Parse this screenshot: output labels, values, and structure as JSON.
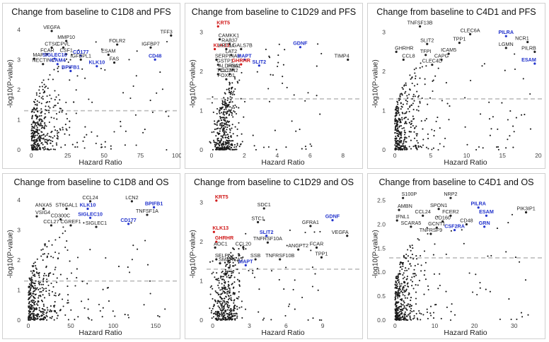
{
  "figure": {
    "colors": {
      "point": "#1a1a1a",
      "threshold": "#bdbdbd",
      "gene_default": "#222222",
      "gene_blue": "#2233cc",
      "gene_red": "#d01818"
    }
  },
  "chart_data": [
    {
      "type": "scatter",
      "title": "Change from baseline to C1D8 and PFS",
      "xlabel": "Hazard Ratio",
      "ylabel": "-log10(P-value)",
      "xlim": [
        -5,
        100
      ],
      "ylim": [
        0,
        4.3
      ],
      "xticks": [
        0,
        25,
        50,
        75,
        100
      ],
      "yticks": [
        0,
        1,
        2,
        3,
        4
      ],
      "threshold": 1.3,
      "cloud": {
        "seed": 11,
        "n": 420,
        "xmax": 100,
        "ymax": 4.3,
        "xscale": 14
      },
      "genes": [
        {
          "label": "VEGFA",
          "x": 14,
          "y": 3.95,
          "color": "default"
        },
        {
          "label": "MMP10",
          "x": 24,
          "y": 3.62,
          "color": "default"
        },
        {
          "label": "CTSC",
          "x": 14,
          "y": 3.4,
          "color": "default"
        },
        {
          "label": "CPVL",
          "x": 22,
          "y": 3.4,
          "color": "default"
        },
        {
          "label": "FCAR",
          "x": 11,
          "y": 3.18,
          "color": "default"
        },
        {
          "label": "CSF1",
          "x": 24,
          "y": 3.18,
          "color": "default"
        },
        {
          "label": "CD177",
          "x": 34,
          "y": 3.13,
          "color": "blue"
        },
        {
          "label": "ESAM",
          "x": 53,
          "y": 3.16,
          "color": "default"
        },
        {
          "label": "FOLR2",
          "x": 59,
          "y": 3.5,
          "color": "default"
        },
        {
          "label": "IGFBP7",
          "x": 82,
          "y": 3.4,
          "color": "default"
        },
        {
          "label": "TFF3",
          "x": 96,
          "y": 3.8,
          "color": "default"
        },
        {
          "label": "MAPT",
          "x": 2,
          "y": 3.03,
          "color": "default"
        },
        {
          "label": "SIGLEC10",
          "x": 16,
          "y": 3.03,
          "color": "blue"
        },
        {
          "label": "IGFBPL1",
          "x": 34,
          "y": 3.0,
          "color": "default"
        },
        {
          "label": "FAS",
          "x": 57,
          "y": 2.9,
          "color": "default"
        },
        {
          "label": "CD48",
          "x": 85,
          "y": 3.0,
          "color": "blue"
        },
        {
          "label": "NECTIN4",
          "x": 8,
          "y": 2.85,
          "color": "default"
        },
        {
          "label": "ICAM4",
          "x": 18,
          "y": 2.85,
          "color": "blue"
        },
        {
          "label": "KLK10",
          "x": 45,
          "y": 2.78,
          "color": "blue"
        },
        {
          "label": "BPIFB1",
          "x": 27,
          "y": 2.62,
          "color": "blue"
        }
      ]
    },
    {
      "type": "scatter",
      "title": "Change from baseline to C1D29 and PFS",
      "xlabel": "Hazard Ratio",
      "ylabel": "-log10(P-value)",
      "xlim": [
        -0.3,
        9
      ],
      "ylim": [
        0,
        3.3
      ],
      "xticks": [
        0,
        2,
        4,
        6,
        8
      ],
      "yticks": [
        0,
        1,
        2,
        3
      ],
      "threshold": 1.3,
      "cloud": {
        "seed": 23,
        "n": 420,
        "xmax": 9,
        "ymax": 3.3,
        "xscale": 0.55,
        "xcenter": 0.85
      },
      "genes": [
        {
          "label": "KRT5",
          "x": 0.4,
          "y": 3.15,
          "color": "red"
        },
        {
          "label": "CAMKK1",
          "x": 0.5,
          "y": 2.82,
          "color": "default"
        },
        {
          "label": "RAB37",
          "x": 1.1,
          "y": 2.7,
          "color": "default"
        },
        {
          "label": "KLK13",
          "x": 0.2,
          "y": 2.57,
          "color": "red"
        },
        {
          "label": "KRT14",
          "x": 0.9,
          "y": 2.57,
          "color": "default"
        },
        {
          "label": "LGALS7B",
          "x": 1.8,
          "y": 2.57,
          "color": "default"
        },
        {
          "label": "GDNF",
          "x": 5.4,
          "y": 2.62,
          "color": "blue"
        },
        {
          "label": "LAT2",
          "x": 1.2,
          "y": 2.42,
          "color": "default"
        },
        {
          "label": "SERPINA9",
          "x": 0.3,
          "y": 2.3,
          "color": "default"
        },
        {
          "label": "MAPT",
          "x": 2.0,
          "y": 2.3,
          "color": "blue"
        },
        {
          "label": "TIMP4",
          "x": 8.3,
          "y": 2.3,
          "color": "default"
        },
        {
          "label": "GSTP1",
          "x": 0.4,
          "y": 2.17,
          "color": "default"
        },
        {
          "label": "GHRHR",
          "x": 1.8,
          "y": 2.18,
          "color": "red"
        },
        {
          "label": "SLIT2",
          "x": 2.9,
          "y": 2.15,
          "color": "blue"
        },
        {
          "label": "ALDH3A1",
          "x": 0.5,
          "y": 2.05,
          "color": "default"
        },
        {
          "label": "IFNG",
          "x": 1.3,
          "y": 2.05,
          "color": "default"
        },
        {
          "label": "TCL1A",
          "x": 0.4,
          "y": 1.93,
          "color": "default"
        },
        {
          "label": "DCTN2",
          "x": 1.1,
          "y": 1.93,
          "color": "default"
        },
        {
          "label": "FOXO1",
          "x": 0.9,
          "y": 1.8,
          "color": "default"
        }
      ]
    },
    {
      "type": "scatter",
      "title": "Change from baseline to C4D1 and PFS",
      "xlabel": "Hazard Ratio",
      "ylabel": "-log10(P-value)",
      "xlim": [
        -0.8,
        20.5
      ],
      "ylim": [
        0,
        3.3
      ],
      "xticks": [
        0,
        5,
        10,
        15,
        20
      ],
      "yticks": [
        0,
        1,
        2,
        3
      ],
      "threshold": 1.3,
      "cloud": {
        "seed": 37,
        "n": 400,
        "xmax": 20,
        "ymax": 3.3,
        "xscale": 2.4
      },
      "genes": [
        {
          "label": "TNFSF13B",
          "x": 3.5,
          "y": 3.15,
          "color": "default"
        },
        {
          "label": "CLEC6A",
          "x": 10.5,
          "y": 2.95,
          "color": "default"
        },
        {
          "label": "PILRA",
          "x": 15.5,
          "y": 2.9,
          "color": "blue"
        },
        {
          "label": "SLIT2",
          "x": 4.5,
          "y": 2.7,
          "color": "default"
        },
        {
          "label": "TPP1",
          "x": 9.0,
          "y": 2.73,
          "color": "default"
        },
        {
          "label": "NCR1",
          "x": 18.5,
          "y": 2.75,
          "color": "default"
        },
        {
          "label": "LGMN",
          "x": 15.5,
          "y": 2.6,
          "color": "default"
        },
        {
          "label": "GHRHR",
          "x": 0.2,
          "y": 2.5,
          "color": "default"
        },
        {
          "label": "TFPI",
          "x": 4.3,
          "y": 2.42,
          "color": "default"
        },
        {
          "label": "ICAM5",
          "x": 7.5,
          "y": 2.45,
          "color": "default"
        },
        {
          "label": "PILRB",
          "x": 19.5,
          "y": 2.5,
          "color": "default"
        },
        {
          "label": "CCL8",
          "x": 1.2,
          "y": 2.3,
          "color": "default"
        },
        {
          "label": "CAPG",
          "x": 6.5,
          "y": 2.3,
          "color": "default"
        },
        {
          "label": "ESAM",
          "x": 19.5,
          "y": 2.2,
          "color": "blue"
        },
        {
          "label": "CLEC4D",
          "x": 5.2,
          "y": 2.17,
          "color": "default"
        }
      ]
    },
    {
      "type": "scatter",
      "title": "Change from baseline to C1D8 and OS",
      "xlabel": "Hazard Ratio",
      "ylabel": "-log10(P-value)",
      "xlim": [
        -5,
        175
      ],
      "ylim": [
        0,
        4.3
      ],
      "xticks": [
        0,
        50,
        100,
        150
      ],
      "yticks": [
        0,
        1,
        2,
        3,
        4
      ],
      "threshold": 1.3,
      "cloud": {
        "seed": 53,
        "n": 420,
        "xmax": 170,
        "ymax": 4.3,
        "xscale": 22
      },
      "genes": [
        {
          "label": "CCL24",
          "x": 73,
          "y": 3.95,
          "color": "default"
        },
        {
          "label": "LCN2",
          "x": 122,
          "y": 3.95,
          "color": "default"
        },
        {
          "label": "BPIFB1",
          "x": 148,
          "y": 3.75,
          "color": "blue"
        },
        {
          "label": "ANXA5",
          "x": 18,
          "y": 3.7,
          "color": "default"
        },
        {
          "label": "ST6GAL1",
          "x": 45,
          "y": 3.7,
          "color": "default"
        },
        {
          "label": "KLK10",
          "x": 70,
          "y": 3.7,
          "color": "blue"
        },
        {
          "label": "TNFSF1A",
          "x": 140,
          "y": 3.5,
          "color": "default"
        },
        {
          "label": "VSIG4",
          "x": 10,
          "y": 3.45,
          "color": "default"
        },
        {
          "label": "SIGLEC10",
          "x": 73,
          "y": 3.4,
          "color": "blue"
        },
        {
          "label": "CD300C",
          "x": 38,
          "y": 3.35,
          "color": "default"
        },
        {
          "label": "CCL27",
          "x": 27,
          "y": 3.15,
          "color": "default"
        },
        {
          "label": "CGREF1",
          "x": 50,
          "y": 3.15,
          "color": "default"
        },
        {
          "label": "SIGLEC1",
          "x": 80,
          "y": 3.1,
          "color": "default"
        },
        {
          "label": "CD177",
          "x": 118,
          "y": 3.2,
          "color": "blue"
        }
      ]
    },
    {
      "type": "scatter",
      "title": "Change from baseline to C1D29 and OS",
      "xlabel": "Hazard Ratio",
      "ylabel": "-log10(P-value)",
      "xlim": [
        -0.5,
        12
      ],
      "ylim": [
        0,
        3.3
      ],
      "xticks": [
        0,
        3,
        6,
        9
      ],
      "yticks": [
        0,
        1,
        2,
        3
      ],
      "threshold": 1.3,
      "cloud": {
        "seed": 71,
        "n": 420,
        "xmax": 12,
        "ymax": 3.3,
        "xscale": 0.8,
        "xcenter": 1.1
      },
      "genes": [
        {
          "label": "KRT5",
          "x": 0.3,
          "y": 3.05,
          "color": "red"
        },
        {
          "label": "SDC1",
          "x": 4.2,
          "y": 2.85,
          "color": "default"
        },
        {
          "label": "GDNF",
          "x": 9.8,
          "y": 2.55,
          "color": "blue"
        },
        {
          "label": "STC1",
          "x": 3.7,
          "y": 2.5,
          "color": "default"
        },
        {
          "label": "GFRA1",
          "x": 8.0,
          "y": 2.4,
          "color": "default"
        },
        {
          "label": "KLK13",
          "x": 0.1,
          "y": 2.25,
          "color": "red"
        },
        {
          "label": "SLIT2",
          "x": 4.4,
          "y": 2.15,
          "color": "blue"
        },
        {
          "label": "VEGFA",
          "x": 11.0,
          "y": 2.15,
          "color": "default"
        },
        {
          "label": "GHRHR",
          "x": 0.3,
          "y": 2.0,
          "color": "red"
        },
        {
          "label": "TNFRSF10A",
          "x": 4.5,
          "y": 1.98,
          "color": "default"
        },
        {
          "label": "AOC1",
          "x": 0.2,
          "y": 1.85,
          "color": "default"
        },
        {
          "label": "CCL20",
          "x": 2.5,
          "y": 1.85,
          "color": "default"
        },
        {
          "label": "ANGPT2",
          "x": 7.0,
          "y": 1.8,
          "color": "default"
        },
        {
          "label": "FCAR",
          "x": 8.5,
          "y": 1.85,
          "color": "default"
        },
        {
          "label": "TPP1",
          "x": 8.9,
          "y": 1.6,
          "color": "default"
        },
        {
          "label": "SELP",
          "x": 0.3,
          "y": 1.55,
          "color": "default"
        },
        {
          "label": "SSB",
          "x": 3.5,
          "y": 1.55,
          "color": "default"
        },
        {
          "label": "TNFRSF10B",
          "x": 5.5,
          "y": 1.55,
          "color": "default"
        },
        {
          "label": "SMARCA2",
          "x": 0.6,
          "y": 1.45,
          "color": "default"
        },
        {
          "label": "MAPT",
          "x": 2.7,
          "y": 1.4,
          "color": "blue"
        }
      ]
    },
    {
      "type": "scatter",
      "title": "Change from baseline to C4D1 and OS",
      "xlabel": "Hazard Ratio",
      "ylabel": "-log10(P-value)",
      "xlim": [
        -1.5,
        37
      ],
      "ylim": [
        0,
        2.7
      ],
      "xticks": [
        0,
        10,
        20,
        30
      ],
      "yticks": [
        0.0,
        0.5,
        1.0,
        1.5,
        2.0,
        2.5
      ],
      "threshold": 1.3,
      "cloud": {
        "seed": 97,
        "n": 420,
        "xmax": 36,
        "ymax": 2.7,
        "xscale": 3.5
      },
      "genes": [
        {
          "label": "S100P",
          "x": 2.0,
          "y": 2.55,
          "color": "default"
        },
        {
          "label": "NRP2",
          "x": 14.0,
          "y": 2.55,
          "color": "default"
        },
        {
          "label": "PILRA",
          "x": 21.0,
          "y": 2.35,
          "color": "blue"
        },
        {
          "label": "PIK3IP1",
          "x": 33.0,
          "y": 2.25,
          "color": "default"
        },
        {
          "label": "AMBN",
          "x": 1.0,
          "y": 2.3,
          "color": "default"
        },
        {
          "label": "SPON1",
          "x": 11.0,
          "y": 2.32,
          "color": "default"
        },
        {
          "label": "CCL24",
          "x": 7.0,
          "y": 2.18,
          "color": "default"
        },
        {
          "label": "FCER2",
          "x": 14.0,
          "y": 2.18,
          "color": "default"
        },
        {
          "label": "ESAM",
          "x": 23.0,
          "y": 2.18,
          "color": "blue"
        },
        {
          "label": "IFNL1",
          "x": 0.5,
          "y": 2.08,
          "color": "default"
        },
        {
          "label": "CD160",
          "x": 12.0,
          "y": 2.06,
          "color": "default"
        },
        {
          "label": "CD48",
          "x": 18.0,
          "y": 2.0,
          "color": "default"
        },
        {
          "label": "GRN",
          "x": 22.5,
          "y": 1.95,
          "color": "blue"
        },
        {
          "label": "SCARA5",
          "x": 4.0,
          "y": 1.95,
          "color": "default"
        },
        {
          "label": "GCNT1",
          "x": 10.5,
          "y": 1.93,
          "color": "default"
        },
        {
          "label": "CSF2RA",
          "x": 15.0,
          "y": 1.88,
          "color": "blue"
        },
        {
          "label": "TNFRSF9",
          "x": 9.0,
          "y": 1.8,
          "color": "default"
        }
      ]
    }
  ]
}
